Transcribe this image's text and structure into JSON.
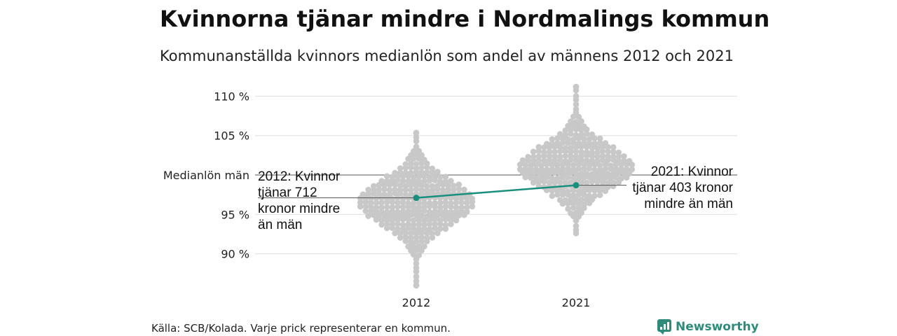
{
  "chart_data": {
    "type": "scatter",
    "title": "Kvinnorna tjänar mindre i Nordmalings kommun",
    "subtitle": "Kommunanställda kvinnors medianlön som andel av männens 2012 och 2021",
    "categories": [
      "2012",
      "2021"
    ],
    "y_ticks": [
      90,
      95,
      105,
      110
    ],
    "y_tick_labels": [
      "90 %",
      "95 %",
      "105 %",
      "110 %"
    ],
    "ylim": [
      85,
      112
    ],
    "reference_line": {
      "value": 100,
      "label": "Medianlön män"
    },
    "highlight": {
      "name": "Nordmaling",
      "color": "#1a8f7e",
      "values": [
        97.1,
        98.7
      ]
    },
    "annotations": [
      {
        "year": "2012",
        "lines": [
          "2012: Kvinnor",
          "tjänar 712",
          "kronor mindre",
          "än män"
        ]
      },
      {
        "year": "2021",
        "lines": [
          "2021: Kvinnor",
          "tjänar 403 kronor",
          "mindre än män"
        ]
      }
    ],
    "distribution": [
      {
        "year": "2012",
        "min": 86.0,
        "max": 105.3,
        "center": 96.5
      },
      {
        "year": "2021",
        "min": 92.6,
        "max": 111.2,
        "center": 101.0
      }
    ],
    "dot_color": "#c8c8c8",
    "grid": true
  },
  "footer": {
    "source": "Källa: SCB/Kolada. Varje prick representerar en kommun.",
    "brand": "Newsworthy"
  },
  "colors": {
    "accent": "#1a8f7e",
    "grid": "#dddddd",
    "dots": "#c8c8c8"
  },
  "icons": {
    "brand_logo": "newsworthy-logo-icon"
  }
}
